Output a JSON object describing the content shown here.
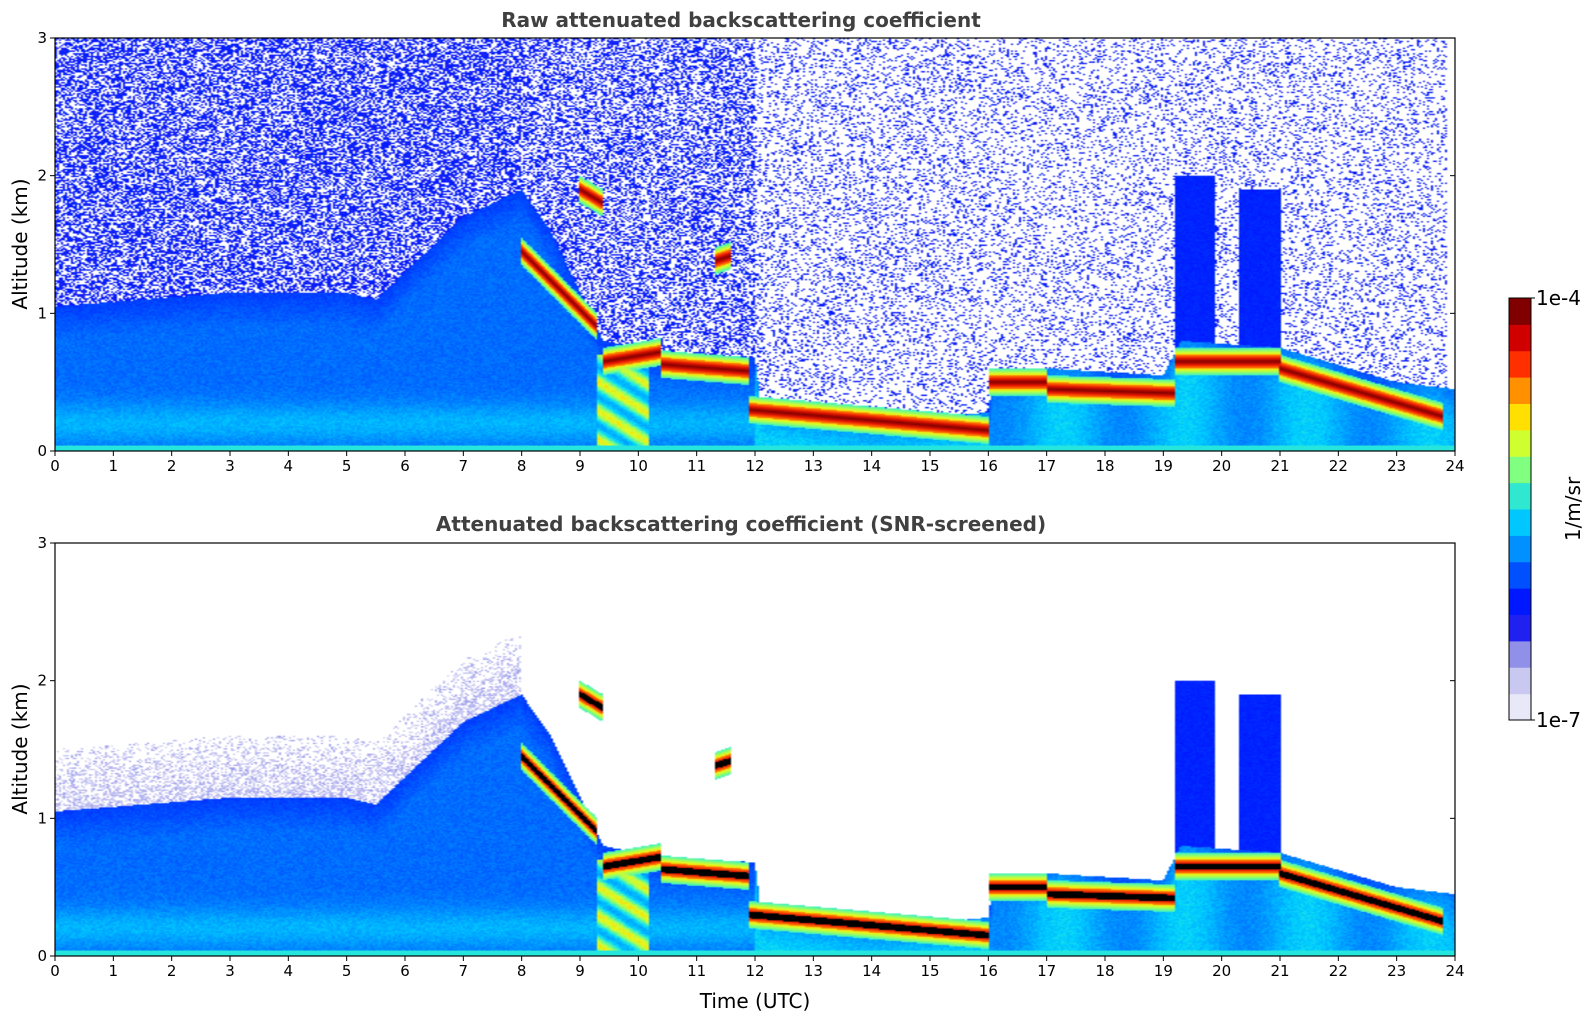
{
  "chart_data": [
    {
      "type": "heatmap",
      "title": "Raw attenuated backscattering coefficient",
      "xlabel": "",
      "ylabel": "Altitude (km)",
      "xlim": [
        0,
        24
      ],
      "ylim": [
        0,
        3
      ],
      "xticks": [
        "0",
        "1",
        "2",
        "3",
        "4",
        "5",
        "6",
        "7",
        "8",
        "9",
        "10",
        "11",
        "12",
        "13",
        "14",
        "15",
        "16",
        "17",
        "18",
        "19",
        "20",
        "21",
        "22",
        "23",
        "24"
      ],
      "yticks": [
        "0",
        "1",
        "2",
        "3"
      ],
      "cloud_layers": [
        {
          "t0": 8.0,
          "t1": 9.3,
          "z0": 1.45,
          "z1": 0.9
        },
        {
          "t0": 9.0,
          "t1": 9.4,
          "z0": 1.9,
          "z1": 1.8
        },
        {
          "t0": 9.4,
          "t1": 10.4,
          "z0": 0.65,
          "z1": 0.72
        },
        {
          "t0": 10.4,
          "t1": 11.9,
          "z0": 0.63,
          "z1": 0.58
        },
        {
          "t0": 11.3,
          "t1": 11.6,
          "z0": 1.38,
          "z1": 1.42
        },
        {
          "t0": 11.9,
          "t1": 16.0,
          "z0": 0.3,
          "z1": 0.15
        },
        {
          "t0": 16.0,
          "t1": 17.0,
          "z0": 0.5,
          "z1": 0.5
        },
        {
          "t0": 17.0,
          "t1": 19.2,
          "z0": 0.45,
          "z1": 0.42
        },
        {
          "t0": 19.2,
          "t1": 21.0,
          "z0": 0.65,
          "z1": 0.65
        },
        {
          "t0": 21.0,
          "t1": 23.8,
          "z0": 0.6,
          "z1": 0.25
        }
      ],
      "cirrus_columns": [
        {
          "t0": 19.2,
          "t1": 19.9,
          "z_top": 2.0
        },
        {
          "t0": 20.3,
          "t1": 21.0,
          "z_top": 1.9
        }
      ]
    },
    {
      "type": "heatmap",
      "title": "Attenuated backscattering coefficient (SNR-screened)",
      "xlabel": "Time (UTC)",
      "ylabel": "Altitude (km)",
      "xlim": [
        0,
        24
      ],
      "ylim": [
        0,
        3
      ],
      "xticks": [
        "0",
        "1",
        "2",
        "3",
        "4",
        "5",
        "6",
        "7",
        "8",
        "9",
        "10",
        "11",
        "12",
        "13",
        "14",
        "15",
        "16",
        "17",
        "18",
        "19",
        "20",
        "21",
        "22",
        "23",
        "24"
      ],
      "yticks": [
        "0",
        "1",
        "2",
        "3"
      ],
      "saturated_color": "#000000"
    }
  ],
  "colorbar": {
    "label": "1/m/sr",
    "min_label": "1e-7",
    "max_label": "1e-4",
    "colors": [
      "#e8e8f8",
      "#c8c8f0",
      "#9090e8",
      "#2020f0",
      "#0018ff",
      "#0050ff",
      "#0090ff",
      "#00c8ff",
      "#30e8d0",
      "#80ff80",
      "#d0ff30",
      "#ffe000",
      "#ff9000",
      "#ff3000",
      "#d00000",
      "#800000"
    ]
  }
}
